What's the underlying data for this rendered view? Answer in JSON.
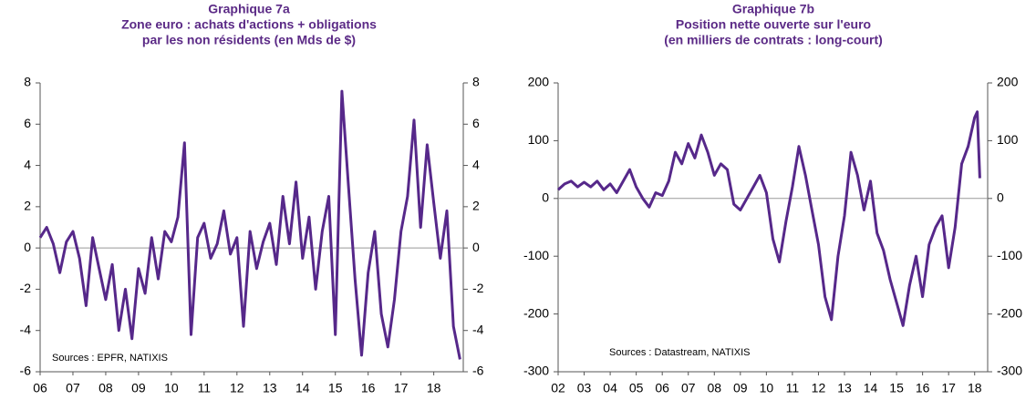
{
  "chart_data": [
    {
      "type": "line",
      "title": [
        "Graphique 7a",
        "Zone euro : achats d'actions + obligations",
        "par les non résidents (en Mds de $)"
      ],
      "annotation": "Sources : EPFR, NATIXIS",
      "color": "#56288a",
      "x": [
        2006.0,
        2006.2,
        2006.4,
        2006.6,
        2006.8,
        2007.0,
        2007.2,
        2007.4,
        2007.6,
        2007.8,
        2008.0,
        2008.2,
        2008.4,
        2008.6,
        2008.8,
        2009.0,
        2009.2,
        2009.4,
        2009.6,
        2009.8,
        2010.0,
        2010.2,
        2010.4,
        2010.6,
        2010.8,
        2011.0,
        2011.2,
        2011.4,
        2011.6,
        2011.8,
        2012.0,
        2012.2,
        2012.4,
        2012.6,
        2012.8,
        2013.0,
        2013.2,
        2013.4,
        2013.6,
        2013.8,
        2014.0,
        2014.2,
        2014.4,
        2014.6,
        2014.8,
        2015.0,
        2015.2,
        2015.4,
        2015.6,
        2015.8,
        2016.0,
        2016.2,
        2016.4,
        2016.6,
        2016.8,
        2017.0,
        2017.2,
        2017.4,
        2017.6,
        2017.8,
        2018.0,
        2018.2,
        2018.4,
        2018.6,
        2018.8
      ],
      "values": [
        0.5,
        1.0,
        0.2,
        -1.2,
        0.3,
        0.8,
        -0.5,
        -2.8,
        0.5,
        -1.0,
        -2.5,
        -0.8,
        -4.0,
        -2.0,
        -4.4,
        -1.0,
        -2.2,
        0.5,
        -1.5,
        0.8,
        0.3,
        1.5,
        5.1,
        -4.2,
        0.5,
        1.2,
        -0.5,
        0.2,
        1.8,
        -0.3,
        0.5,
        -3.8,
        0.8,
        -1.0,
        0.3,
        1.2,
        -0.8,
        2.5,
        0.2,
        3.2,
        -0.5,
        1.5,
        -2.0,
        0.8,
        2.5,
        -4.2,
        7.6,
        3.0,
        -1.5,
        -5.2,
        -1.2,
        0.8,
        -3.2,
        -4.8,
        -2.5,
        0.8,
        2.5,
        6.2,
        1.0,
        5.0,
        2.2,
        -0.5,
        1.8,
        -3.8,
        -5.4
      ],
      "xlim": [
        2006,
        2018.9
      ],
      "xticks": [
        {
          "value": 2006,
          "label": "06"
        },
        {
          "value": 2007,
          "label": "07"
        },
        {
          "value": 2008,
          "label": "08"
        },
        {
          "value": 2009,
          "label": "09"
        },
        {
          "value": 2010,
          "label": "10"
        },
        {
          "value": 2011,
          "label": "11"
        },
        {
          "value": 2012,
          "label": "12"
        },
        {
          "value": 2013,
          "label": "13"
        },
        {
          "value": 2014,
          "label": "14"
        },
        {
          "value": 2015,
          "label": "15"
        },
        {
          "value": 2016,
          "label": "16"
        },
        {
          "value": 2017,
          "label": "17"
        },
        {
          "value": 2018,
          "label": "18"
        }
      ],
      "ylim": [
        -6,
        8
      ],
      "yticks": [
        -6,
        -4,
        -2,
        0,
        2,
        4,
        6,
        8
      ]
    },
    {
      "type": "line",
      "title": [
        "Graphique 7b",
        "Position nette ouverte sur l'euro",
        "(en milliers de contrats : long-court)"
      ],
      "annotation": "Sources : Datastream, NATIXIS",
      "color": "#56288a",
      "x": [
        2002,
        2002.25,
        2002.5,
        2002.75,
        2003,
        2003.25,
        2003.5,
        2003.75,
        2004,
        2004.25,
        2004.5,
        2004.75,
        2005,
        2005.25,
        2005.5,
        2005.75,
        2006,
        2006.25,
        2006.5,
        2006.75,
        2007,
        2007.25,
        2007.5,
        2007.75,
        2008,
        2008.25,
        2008.5,
        2008.75,
        2009,
        2009.25,
        2009.5,
        2009.75,
        2010,
        2010.25,
        2010.5,
        2010.75,
        2011,
        2011.25,
        2011.5,
        2011.75,
        2012,
        2012.25,
        2012.5,
        2012.75,
        2013,
        2013.25,
        2013.5,
        2013.75,
        2014,
        2014.25,
        2014.5,
        2014.75,
        2015,
        2015.25,
        2015.5,
        2015.75,
        2016,
        2016.25,
        2016.5,
        2016.75,
        2017,
        2017.25,
        2017.5,
        2017.75,
        2018.0,
        2018.1,
        2018.2
      ],
      "values": [
        15,
        25,
        30,
        20,
        28,
        20,
        30,
        15,
        25,
        10,
        30,
        50,
        20,
        0,
        -15,
        10,
        5,
        30,
        80,
        60,
        95,
        70,
        110,
        80,
        40,
        60,
        50,
        -10,
        -20,
        0,
        20,
        40,
        10,
        -70,
        -110,
        -40,
        20,
        90,
        40,
        -20,
        -80,
        -170,
        -210,
        -100,
        -30,
        80,
        40,
        -20,
        30,
        -60,
        -90,
        -140,
        -180,
        -220,
        -150,
        -100,
        -170,
        -80,
        -50,
        -30,
        -120,
        -50,
        60,
        90,
        140,
        150,
        35
      ],
      "xlim": [
        2002,
        2018.5
      ],
      "xticks": [
        {
          "value": 2002,
          "label": "02"
        },
        {
          "value": 2003,
          "label": "03"
        },
        {
          "value": 2004,
          "label": "04"
        },
        {
          "value": 2005,
          "label": "05"
        },
        {
          "value": 2006,
          "label": "06"
        },
        {
          "value": 2007,
          "label": "07"
        },
        {
          "value": 2008,
          "label": "08"
        },
        {
          "value": 2009,
          "label": "09"
        },
        {
          "value": 2010,
          "label": "10"
        },
        {
          "value": 2011,
          "label": "11"
        },
        {
          "value": 2012,
          "label": "12"
        },
        {
          "value": 2013,
          "label": "13"
        },
        {
          "value": 2014,
          "label": "14"
        },
        {
          "value": 2015,
          "label": "15"
        },
        {
          "value": 2016,
          "label": "16"
        },
        {
          "value": 2017,
          "label": "17"
        },
        {
          "value": 2018,
          "label": "18"
        }
      ],
      "ylim": [
        -300,
        200
      ],
      "yticks": [
        -300,
        -200,
        -100,
        0,
        100,
        200
      ]
    }
  ]
}
